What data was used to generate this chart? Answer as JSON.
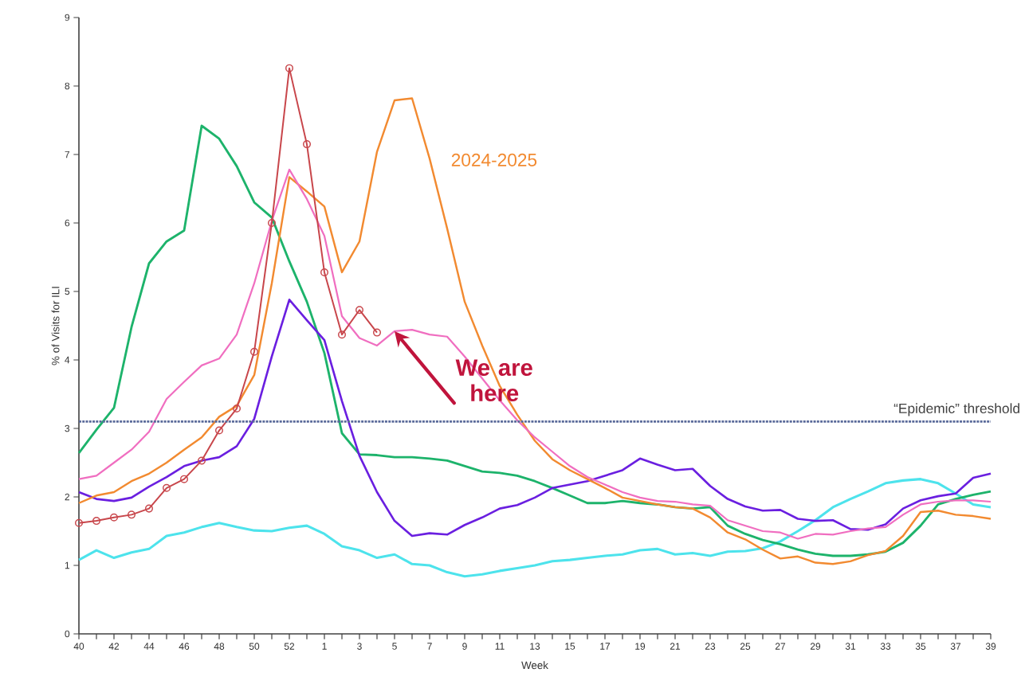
{
  "chart_data": {
    "type": "line",
    "xlabel": "Week",
    "ylabel": "% of Visits for ILI",
    "categories": [
      "40",
      null,
      "42",
      null,
      "44",
      null,
      "46",
      null,
      "48",
      null,
      "50",
      null,
      "52",
      null,
      "1",
      null,
      "3",
      null,
      "5",
      null,
      "7",
      null,
      "9",
      null,
      "11",
      null,
      "13",
      null,
      "15",
      null,
      "17",
      null,
      "19",
      null,
      "21",
      null,
      "23",
      null,
      "25",
      null,
      "27",
      null,
      "29",
      null,
      "31",
      null,
      "33",
      null,
      "35",
      null,
      "37",
      null,
      "39"
    ],
    "ylim": [
      0,
      9
    ],
    "yticks": [
      0,
      1,
      2,
      3,
      4,
      5,
      6,
      7,
      8,
      9
    ],
    "grid": false,
    "legend": false,
    "line_style": "solid",
    "series": [
      {
        "color": "#4de3ec",
        "values": [
          1.08,
          1.22,
          1.11,
          1.19,
          1.24,
          1.43,
          1.48,
          1.56,
          1.62,
          1.56,
          1.51,
          1.5,
          1.55,
          1.58,
          1.46,
          1.28,
          1.22,
          1.11,
          1.16,
          1.02,
          1.0,
          0.9,
          0.84,
          0.87,
          0.92,
          0.96,
          1.0,
          1.06,
          1.08,
          1.11,
          1.14,
          1.16,
          1.22,
          1.24,
          1.16,
          1.18,
          1.14,
          1.2,
          1.21,
          1.25,
          1.35,
          1.5,
          1.66,
          1.85,
          1.97,
          2.08,
          2.2,
          2.24,
          2.26,
          2.2,
          2.05,
          1.89,
          1.85
        ]
      },
      {
        "color": "#1db36b",
        "values": [
          2.64,
          2.98,
          3.3,
          4.48,
          5.41,
          5.73,
          5.89,
          7.42,
          7.23,
          6.83,
          6.3,
          6.08,
          5.44,
          4.85,
          4.1,
          2.93,
          2.62,
          2.61,
          2.58,
          2.58,
          2.56,
          2.53,
          2.45,
          2.37,
          2.35,
          2.31,
          2.23,
          2.13,
          2.02,
          1.91,
          1.91,
          1.94,
          1.91,
          1.89,
          1.85,
          1.83,
          1.85,
          1.58,
          1.46,
          1.37,
          1.31,
          1.23,
          1.17,
          1.14,
          1.14,
          1.16,
          1.2,
          1.33,
          1.58,
          1.89,
          1.97,
          2.03,
          2.08
        ]
      },
      {
        "color": "#6a1fe0",
        "values": [
          2.07,
          1.97,
          1.94,
          1.99,
          2.15,
          2.29,
          2.45,
          2.53,
          2.58,
          2.74,
          3.14,
          4.05,
          4.88,
          4.58,
          4.29,
          3.4,
          2.6,
          2.07,
          1.65,
          1.43,
          1.47,
          1.45,
          1.59,
          1.7,
          1.83,
          1.88,
          1.99,
          2.13,
          2.18,
          2.23,
          2.31,
          2.39,
          2.56,
          2.47,
          2.39,
          2.41,
          2.16,
          1.97,
          1.86,
          1.8,
          1.81,
          1.68,
          1.65,
          1.66,
          1.53,
          1.52,
          1.6,
          1.83,
          1.95,
          2.01,
          2.05,
          2.28,
          2.34
        ]
      },
      {
        "name": "2024-2025",
        "color": "#f28a30",
        "values": [
          1.91,
          2.02,
          2.07,
          2.23,
          2.34,
          2.5,
          2.69,
          2.87,
          3.17,
          3.33,
          3.78,
          5.12,
          6.67,
          6.46,
          6.24,
          5.28,
          5.73,
          7.04,
          7.79,
          7.82,
          6.94,
          5.92,
          4.85,
          4.21,
          3.62,
          3.2,
          2.82,
          2.55,
          2.39,
          2.26,
          2.13,
          1.99,
          1.94,
          1.89,
          1.85,
          1.83,
          1.7,
          1.48,
          1.38,
          1.23,
          1.1,
          1.13,
          1.04,
          1.02,
          1.06,
          1.15,
          1.21,
          1.43,
          1.78,
          1.8,
          1.74,
          1.72,
          1.68
        ]
      },
      {
        "color": "#f06ec0",
        "values": [
          2.26,
          2.31,
          2.5,
          2.69,
          2.95,
          3.43,
          3.68,
          3.92,
          4.02,
          4.37,
          5.12,
          6.03,
          6.78,
          6.35,
          5.81,
          4.64,
          4.32,
          4.21,
          4.42,
          4.44,
          4.37,
          4.34,
          4.05,
          3.73,
          3.41,
          3.12,
          2.87,
          2.66,
          2.45,
          2.29,
          2.18,
          2.07,
          1.99,
          1.94,
          1.93,
          1.89,
          1.87,
          1.66,
          1.58,
          1.5,
          1.48,
          1.39,
          1.46,
          1.45,
          1.5,
          1.54,
          1.56,
          1.74,
          1.89,
          1.93,
          1.95,
          1.95,
          1.93
        ]
      },
      {
        "color": "#c8464b",
        "marker": "circle",
        "values": [
          1.62,
          1.65,
          1.7,
          1.74,
          1.83,
          2.13,
          2.26,
          2.53,
          2.97,
          3.29,
          4.12,
          6.0,
          8.26,
          7.15,
          5.28,
          4.37,
          4.73,
          4.4,
          null,
          null,
          null,
          null,
          null,
          null,
          null,
          null,
          null,
          null,
          null,
          null,
          null,
          null,
          null,
          null,
          null,
          null,
          null,
          null,
          null,
          null,
          null,
          null,
          null,
          null,
          null,
          null,
          null,
          null,
          null,
          null,
          null,
          null,
          null
        ]
      }
    ],
    "ref_lines": [
      {
        "axis": "y",
        "value": 3.1,
        "label": "“Epidemic” threshold",
        "color": "#5a6a9a",
        "line_style": "dotted"
      }
    ],
    "annotations": [
      {
        "text": "We are here",
        "x": "5",
        "y": 4.42
      }
    ]
  }
}
